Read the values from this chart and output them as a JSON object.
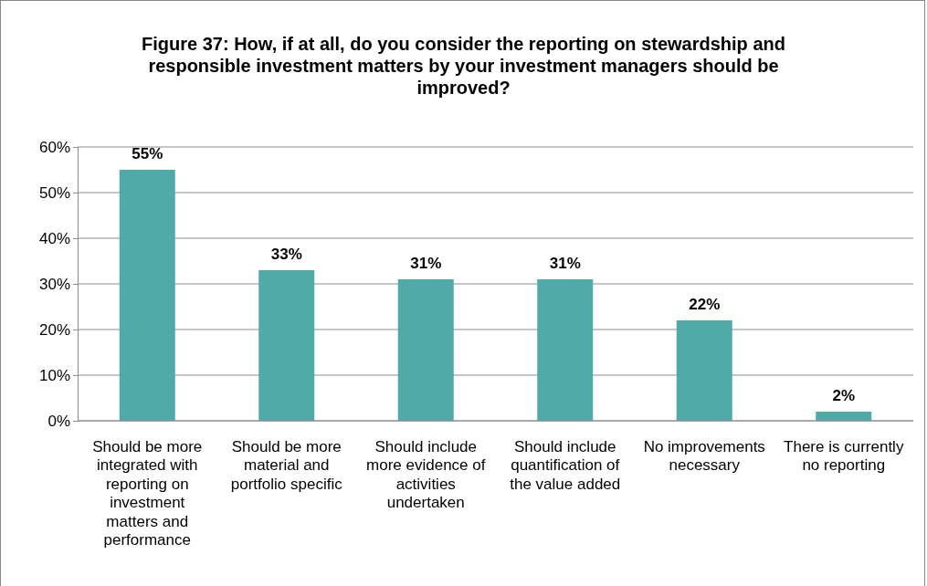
{
  "chart_data": {
    "type": "bar",
    "title": "Figure 37: How, if at all, do you consider the reporting on stewardship and responsible investment matters by your investment managers should be improved?",
    "categories": [
      "Should be more integrated with reporting on investment matters and performance",
      "Should be more material and portfolio specific",
      "Should include more evidence of activities undertaken",
      "Should include quantification of the value added",
      "No improvements necessary",
      "There is currently no reporting"
    ],
    "values": [
      55,
      33,
      31,
      31,
      22,
      2
    ],
    "color": "#4faaa8",
    "value_labels": [
      "55%",
      "33%",
      "31%",
      "31%",
      "22%",
      "2%"
    ],
    "ylim": [
      0,
      60
    ],
    "yticks": [
      {
        "value": 0,
        "label": "0%"
      },
      {
        "value": 10,
        "label": "10%"
      },
      {
        "value": 20,
        "label": "20%"
      },
      {
        "value": 30,
        "label": "30%"
      },
      {
        "value": 40,
        "label": "40%"
      },
      {
        "value": 50,
        "label": "50%"
      },
      {
        "value": 60,
        "label": "60%"
      }
    ],
    "grid": "y"
  }
}
